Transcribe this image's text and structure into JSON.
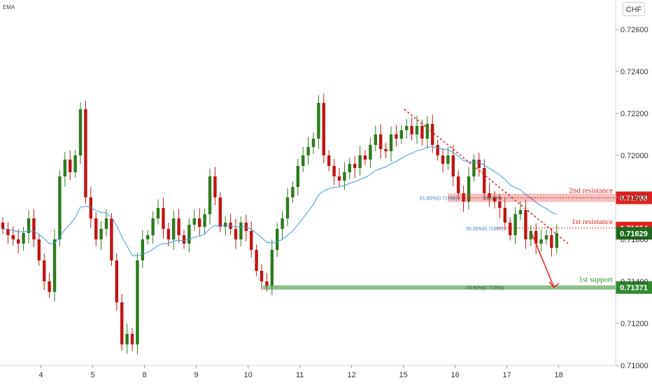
{
  "header": {
    "indicator_label": "EMA",
    "currency_button": "CHF"
  },
  "colors": {
    "bull": "#2d7a1f",
    "bear": "#c11414",
    "ema": "#3b9ae0",
    "resistance": "#e02020",
    "support": "#2e8b2e",
    "current_price": "#1d6a1d",
    "trendline": "#e02020"
  },
  "chart_data": {
    "type": "candlestick",
    "price_axis": {
      "ylim": [
        0.71,
        0.7274
      ],
      "ticks": [
        "0.72600",
        "0.72400",
        "0.72200",
        "0.72000",
        "0.71800",
        "0.71600",
        "0.71400",
        "0.71200",
        "0.71000"
      ],
      "tick_values": [
        0.726,
        0.724,
        0.722,
        0.72,
        0.718,
        0.716,
        0.714,
        0.712,
        0.71
      ]
    },
    "time_axis": {
      "labels": [
        "4",
        "5",
        "8",
        "9",
        "10",
        "11",
        "12",
        "15",
        "16",
        "17",
        "18"
      ],
      "label_index": [
        9,
        19,
        29,
        39,
        49,
        59,
        69,
        79,
        89,
        99,
        109
      ]
    },
    "candle_count": 108,
    "key_closes": [
      0.7165,
      0.7162,
      0.716,
      0.7158,
      0.7163,
      0.717,
      0.716,
      0.715,
      0.714,
      0.7135,
      0.716,
      0.719,
      0.7198,
      0.7192,
      0.72,
      0.7222,
      0.718,
      0.717,
      0.716,
      0.7165,
      0.717,
      0.715,
      0.713,
      0.711,
      0.7115,
      0.711,
      0.715,
      0.716,
      0.7162,
      0.717,
      0.7175,
      0.7165,
      0.716,
      0.717,
      0.7162,
      0.7158,
      0.7167,
      0.717,
      0.7166,
      0.7172,
      0.719,
      0.718,
      0.7166,
      0.7168,
      0.7165,
      0.716,
      0.7168,
      0.7164,
      0.7155,
      0.7145,
      0.714,
      0.7138,
      0.7155,
      0.7165,
      0.717,
      0.718,
      0.7185,
      0.7195,
      0.72,
      0.7204,
      0.7208,
      0.7225,
      0.72,
      0.7195,
      0.719,
      0.7188,
      0.7192,
      0.7196,
      0.7194,
      0.72,
      0.7198,
      0.7205,
      0.721,
      0.7203,
      0.7202,
      0.721,
      0.7208,
      0.7212,
      0.7214,
      0.721,
      0.7214,
      0.7208,
      0.7215,
      0.7205,
      0.72,
      0.7196,
      0.72,
      0.719,
      0.7182,
      0.7178,
      0.719,
      0.7198,
      0.7194,
      0.7182,
      0.718,
      0.7178,
      0.7175,
      0.7168,
      0.7162,
      0.7172,
      0.7174,
      0.716,
      0.7164,
      0.7158,
      0.716,
      0.7162,
      0.7156,
      0.7163
    ],
    "annotations": {
      "resistance_2": {
        "label": "2nd resistance",
        "price": "0.71798",
        "value": 0.71798
      },
      "resistance_1": {
        "label": "1st resistance",
        "price": "0.71654",
        "value": 0.71654
      },
      "support_1": {
        "label": "1st support",
        "price": "0.71371",
        "value": 0.71371
      },
      "current_price": {
        "price": "0.71629",
        "value": 0.71629
      }
    },
    "fib_labels": {
      "f618": "61.80%(0.71788)",
      "f100": "100.00%",
      "f500": "50.00%(0.71692)",
      "f786": "-78.60%(0.71354)"
    },
    "grid": false
  }
}
